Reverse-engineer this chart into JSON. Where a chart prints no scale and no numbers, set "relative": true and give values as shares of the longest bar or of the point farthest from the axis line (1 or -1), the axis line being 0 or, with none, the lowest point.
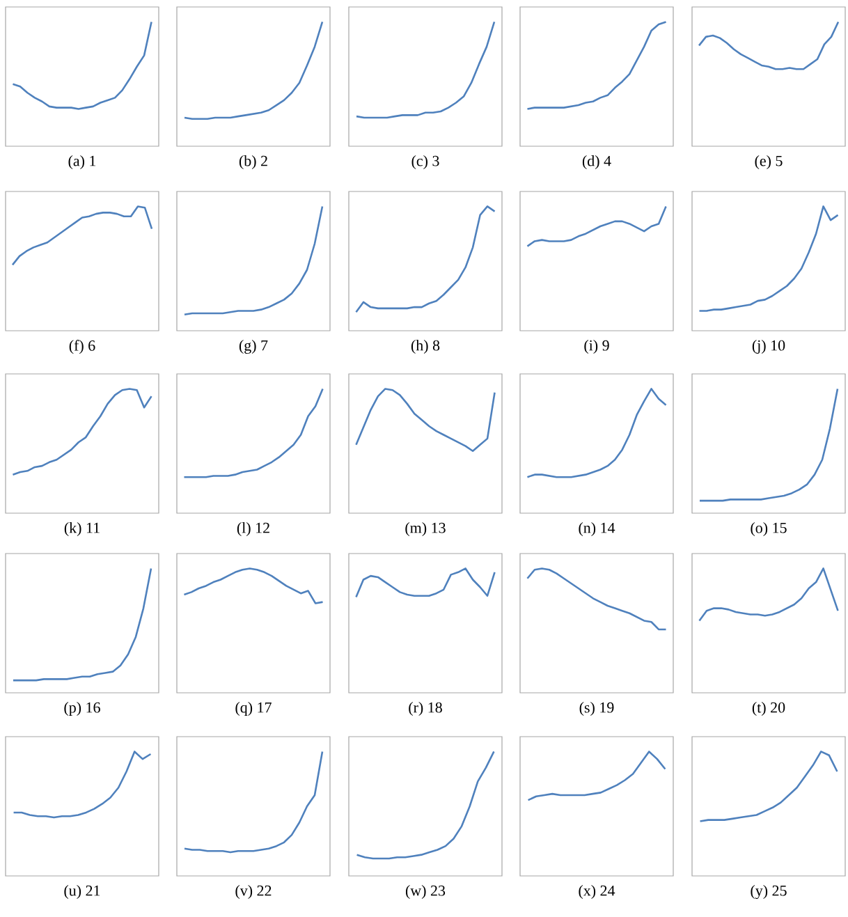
{
  "chart_data": [
    {
      "type": "line",
      "title": "(a) 1",
      "relative": true,
      "color": "#4f81bd",
      "categories": [
        null,
        null,
        null,
        null,
        null,
        null,
        null,
        null,
        null,
        null,
        null,
        null,
        null,
        null,
        null,
        null,
        null,
        null,
        null,
        null
      ],
      "values": [
        0.5,
        0.48,
        0.43,
        0.39,
        0.36,
        0.32,
        0.31,
        0.31,
        0.31,
        0.3,
        0.31,
        0.32,
        0.35,
        0.37,
        0.39,
        0.45,
        0.54,
        0.64,
        0.73,
        1
      ]
    },
    {
      "type": "line",
      "title": "(b) 2",
      "relative": true,
      "color": "#4f81bd",
      "categories": [
        null,
        null,
        null,
        null,
        null,
        null,
        null,
        null,
        null,
        null,
        null,
        null,
        null,
        null,
        null,
        null,
        null,
        null,
        null
      ],
      "values": [
        0.23,
        0.22,
        0.22,
        0.22,
        0.23,
        0.23,
        0.23,
        0.24,
        0.25,
        0.26,
        0.27,
        0.29,
        0.33,
        0.37,
        0.43,
        0.51,
        0.65,
        0.8,
        1
      ]
    },
    {
      "type": "line",
      "title": "(c) 3",
      "relative": true,
      "color": "#4f81bd",
      "categories": [
        null,
        null,
        null,
        null,
        null,
        null,
        null,
        null,
        null,
        null,
        null,
        null,
        null,
        null,
        null,
        null,
        null,
        null,
        null
      ],
      "values": [
        0.24,
        0.23,
        0.23,
        0.23,
        0.23,
        0.24,
        0.25,
        0.25,
        0.25,
        0.27,
        0.27,
        0.28,
        0.31,
        0.35,
        0.4,
        0.51,
        0.66,
        0.8,
        1
      ]
    },
    {
      "type": "line",
      "title": "(d) 4",
      "relative": true,
      "color": "#4f81bd",
      "categories": [
        null,
        null,
        null,
        null,
        null,
        null,
        null,
        null,
        null,
        null,
        null,
        null,
        null,
        null,
        null,
        null,
        null,
        null,
        null,
        null
      ],
      "values": [
        0.3,
        0.31,
        0.31,
        0.31,
        0.31,
        0.31,
        0.32,
        0.33,
        0.35,
        0.36,
        0.39,
        0.41,
        0.47,
        0.52,
        0.58,
        0.69,
        0.8,
        0.93,
        0.98,
        1
      ]
    },
    {
      "type": "line",
      "title": "(e) 5",
      "relative": true,
      "color": "#4f81bd",
      "categories": [
        null,
        null,
        null,
        null,
        null,
        null,
        null,
        null,
        null,
        null,
        null,
        null,
        null,
        null,
        null,
        null,
        null,
        null,
        null,
        null,
        null
      ],
      "values": [
        0.81,
        0.88,
        0.89,
        0.87,
        0.83,
        0.78,
        0.74,
        0.71,
        0.68,
        0.65,
        0.64,
        0.62,
        0.62,
        0.63,
        0.62,
        0.62,
        0.66,
        0.7,
        0.82,
        0.88,
        1
      ]
    },
    {
      "type": "line",
      "title": "(f) 6",
      "relative": true,
      "color": "#4f81bd",
      "categories": [
        null,
        null,
        null,
        null,
        null,
        null,
        null,
        null,
        null,
        null,
        null,
        null,
        null,
        null,
        null,
        null,
        null,
        null,
        null,
        null,
        null
      ],
      "values": [
        0.53,
        0.6,
        0.64,
        0.67,
        0.69,
        0.71,
        0.75,
        0.79,
        0.83,
        0.87,
        0.91,
        0.92,
        0.94,
        0.95,
        0.95,
        0.94,
        0.92,
        0.92,
        1,
        0.99,
        0.82
      ]
    },
    {
      "type": "line",
      "title": "(g) 7",
      "relative": true,
      "color": "#4f81bd",
      "categories": [
        null,
        null,
        null,
        null,
        null,
        null,
        null,
        null,
        null,
        null,
        null,
        null,
        null,
        null,
        null,
        null,
        null,
        null,
        null
      ],
      "values": [
        0.13,
        0.14,
        0.14,
        0.14,
        0.14,
        0.14,
        0.15,
        0.16,
        0.16,
        0.16,
        0.17,
        0.19,
        0.22,
        0.25,
        0.3,
        0.38,
        0.49,
        0.7,
        1
      ]
    },
    {
      "type": "line",
      "title": "(h) 8",
      "relative": true,
      "color": "#4f81bd",
      "categories": [
        null,
        null,
        null,
        null,
        null,
        null,
        null,
        null,
        null,
        null,
        null,
        null,
        null,
        null,
        null,
        null,
        null,
        null,
        null,
        null
      ],
      "values": [
        0.15,
        0.23,
        0.19,
        0.18,
        0.18,
        0.18,
        0.18,
        0.18,
        0.19,
        0.19,
        0.22,
        0.24,
        0.29,
        0.35,
        0.41,
        0.51,
        0.67,
        0.93,
        1,
        0.96
      ]
    },
    {
      "type": "line",
      "title": "(i) 9",
      "relative": true,
      "color": "#4f81bd",
      "categories": [
        null,
        null,
        null,
        null,
        null,
        null,
        null,
        null,
        null,
        null,
        null,
        null,
        null,
        null,
        null,
        null,
        null,
        null,
        null,
        null
      ],
      "values": [
        0.68,
        0.72,
        0.73,
        0.72,
        0.72,
        0.72,
        0.73,
        0.76,
        0.78,
        0.81,
        0.84,
        0.86,
        0.88,
        0.88,
        0.86,
        0.83,
        0.8,
        0.84,
        0.86,
        1
      ]
    },
    {
      "type": "line",
      "title": "(j) 10",
      "relative": true,
      "color": "#4f81bd",
      "categories": [
        null,
        null,
        null,
        null,
        null,
        null,
        null,
        null,
        null,
        null,
        null,
        null,
        null,
        null,
        null,
        null,
        null,
        null,
        null,
        null
      ],
      "values": [
        0.16,
        0.16,
        0.17,
        0.17,
        0.18,
        0.19,
        0.2,
        0.21,
        0.24,
        0.25,
        0.28,
        0.32,
        0.36,
        0.42,
        0.5,
        0.63,
        0.78,
        1,
        0.89,
        0.93
      ]
    },
    {
      "type": "line",
      "title": "(k) 11",
      "relative": true,
      "color": "#4f81bd",
      "categories": [
        null,
        null,
        null,
        null,
        null,
        null,
        null,
        null,
        null,
        null,
        null,
        null,
        null,
        null,
        null,
        null,
        null,
        null,
        null,
        null
      ],
      "values": [
        0.31,
        0.33,
        0.34,
        0.37,
        0.38,
        0.41,
        0.43,
        0.47,
        0.51,
        0.57,
        0.61,
        0.7,
        0.78,
        0.88,
        0.95,
        0.99,
        1,
        0.99,
        0.85,
        0.94
      ]
    },
    {
      "type": "line",
      "title": "(l) 12",
      "relative": true,
      "color": "#4f81bd",
      "categories": [
        null,
        null,
        null,
        null,
        null,
        null,
        null,
        null,
        null,
        null,
        null,
        null,
        null,
        null,
        null,
        null,
        null,
        null,
        null,
        null
      ],
      "values": [
        0.29,
        0.29,
        0.29,
        0.29,
        0.3,
        0.3,
        0.3,
        0.31,
        0.33,
        0.34,
        0.35,
        0.38,
        0.41,
        0.45,
        0.5,
        0.55,
        0.63,
        0.78,
        0.86,
        1
      ]
    },
    {
      "type": "line",
      "title": "(m) 13",
      "relative": true,
      "color": "#4f81bd",
      "categories": [
        null,
        null,
        null,
        null,
        null,
        null,
        null,
        null,
        null,
        null,
        null,
        null,
        null,
        null,
        null,
        null,
        null,
        null,
        null,
        null
      ],
      "values": [
        0.55,
        0.69,
        0.83,
        0.94,
        1,
        0.99,
        0.95,
        0.88,
        0.8,
        0.75,
        0.7,
        0.66,
        0.63,
        0.6,
        0.57,
        0.54,
        0.5,
        0.55,
        0.6,
        0.97
      ]
    },
    {
      "type": "line",
      "title": "(n) 14",
      "relative": true,
      "color": "#4f81bd",
      "categories": [
        null,
        null,
        null,
        null,
        null,
        null,
        null,
        null,
        null,
        null,
        null,
        null,
        null,
        null,
        null,
        null,
        null,
        null,
        null,
        null
      ],
      "values": [
        0.29,
        0.31,
        0.31,
        0.3,
        0.29,
        0.29,
        0.29,
        0.3,
        0.31,
        0.33,
        0.35,
        0.38,
        0.43,
        0.51,
        0.63,
        0.79,
        0.9,
        1,
        0.92,
        0.87
      ]
    },
    {
      "type": "line",
      "title": "(o) 15",
      "relative": true,
      "color": "#4f81bd",
      "categories": [
        null,
        null,
        null,
        null,
        null,
        null,
        null,
        null,
        null,
        null,
        null,
        null,
        null,
        null,
        null,
        null,
        null,
        null,
        null
      ],
      "values": [
        0.1,
        0.1,
        0.1,
        0.1,
        0.11,
        0.11,
        0.11,
        0.11,
        0.11,
        0.12,
        0.13,
        0.14,
        0.16,
        0.19,
        0.23,
        0.31,
        0.43,
        0.68,
        1
      ]
    },
    {
      "type": "line",
      "title": "(p) 16",
      "relative": true,
      "color": "#4f81bd",
      "categories": [
        null,
        null,
        null,
        null,
        null,
        null,
        null,
        null,
        null,
        null,
        null,
        null,
        null,
        null,
        null,
        null,
        null,
        null,
        null
      ],
      "values": [
        0.1,
        0.1,
        0.1,
        0.1,
        0.11,
        0.11,
        0.11,
        0.11,
        0.12,
        0.13,
        0.13,
        0.15,
        0.16,
        0.17,
        0.22,
        0.31,
        0.45,
        0.68,
        1
      ]
    },
    {
      "type": "line",
      "title": "(q) 17",
      "relative": true,
      "color": "#4f81bd",
      "categories": [
        null,
        null,
        null,
        null,
        null,
        null,
        null,
        null,
        null,
        null,
        null,
        null,
        null,
        null,
        null,
        null,
        null,
        null,
        null,
        null
      ],
      "values": [
        0.79,
        0.81,
        0.84,
        0.86,
        0.89,
        0.91,
        0.94,
        0.97,
        0.99,
        1,
        0.99,
        0.97,
        0.94,
        0.9,
        0.86,
        0.83,
        0.8,
        0.82,
        0.72,
        0.73
      ]
    },
    {
      "type": "line",
      "title": "(r) 18",
      "relative": true,
      "color": "#4f81bd",
      "categories": [
        null,
        null,
        null,
        null,
        null,
        null,
        null,
        null,
        null,
        null,
        null,
        null,
        null,
        null,
        null,
        null,
        null,
        null,
        null,
        null
      ],
      "values": [
        0.77,
        0.91,
        0.94,
        0.93,
        0.89,
        0.85,
        0.81,
        0.79,
        0.78,
        0.78,
        0.78,
        0.8,
        0.83,
        0.95,
        0.97,
        1,
        0.91,
        0.85,
        0.78,
        0.97
      ]
    },
    {
      "type": "line",
      "title": "(s) 19",
      "relative": true,
      "color": "#4f81bd",
      "categories": [
        null,
        null,
        null,
        null,
        null,
        null,
        null,
        null,
        null,
        null,
        null,
        null,
        null,
        null,
        null,
        null,
        null,
        null,
        null,
        null
      ],
      "values": [
        0.92,
        0.99,
        1,
        0.99,
        0.96,
        0.92,
        0.88,
        0.84,
        0.8,
        0.76,
        0.73,
        0.7,
        0.68,
        0.66,
        0.64,
        0.61,
        0.58,
        0.57,
        0.51,
        0.51
      ]
    },
    {
      "type": "line",
      "title": "(t) 20",
      "relative": true,
      "color": "#4f81bd",
      "categories": [
        null,
        null,
        null,
        null,
        null,
        null,
        null,
        null,
        null,
        null,
        null,
        null,
        null,
        null,
        null,
        null,
        null,
        null,
        null,
        null
      ],
      "values": [
        0.58,
        0.66,
        0.68,
        0.68,
        0.67,
        0.65,
        0.64,
        0.63,
        0.63,
        0.62,
        0.63,
        0.65,
        0.68,
        0.71,
        0.76,
        0.84,
        0.89,
        1,
        0.83,
        0.66
      ]
    },
    {
      "type": "line",
      "title": "(u) 21",
      "relative": true,
      "color": "#4f81bd",
      "categories": [
        null,
        null,
        null,
        null,
        null,
        null,
        null,
        null,
        null,
        null,
        null,
        null,
        null,
        null,
        null,
        null,
        null,
        null
      ],
      "values": [
        0.51,
        0.51,
        0.49,
        0.48,
        0.48,
        0.47,
        0.48,
        0.48,
        0.49,
        0.51,
        0.54,
        0.58,
        0.63,
        0.71,
        0.84,
        1,
        0.94,
        0.98
      ]
    },
    {
      "type": "line",
      "title": "(v) 22",
      "relative": true,
      "color": "#4f81bd",
      "categories": [
        null,
        null,
        null,
        null,
        null,
        null,
        null,
        null,
        null,
        null,
        null,
        null,
        null,
        null,
        null,
        null,
        null,
        null,
        null
      ],
      "values": [
        0.22,
        0.21,
        0.21,
        0.2,
        0.2,
        0.2,
        0.19,
        0.2,
        0.2,
        0.2,
        0.21,
        0.22,
        0.24,
        0.27,
        0.33,
        0.43,
        0.56,
        0.65,
        1
      ]
    },
    {
      "type": "line",
      "title": "(w) 23",
      "relative": true,
      "color": "#4f81bd",
      "categories": [
        null,
        null,
        null,
        null,
        null,
        null,
        null,
        null,
        null,
        null,
        null,
        null,
        null,
        null,
        null,
        null,
        null,
        null
      ],
      "values": [
        0.17,
        0.15,
        0.14,
        0.14,
        0.14,
        0.15,
        0.15,
        0.16,
        0.17,
        0.19,
        0.21,
        0.24,
        0.3,
        0.4,
        0.56,
        0.76,
        0.87,
        1
      ]
    },
    {
      "type": "line",
      "title": "(x) 24",
      "relative": true,
      "color": "#4f81bd",
      "categories": [
        null,
        null,
        null,
        null,
        null,
        null,
        null,
        null,
        null,
        null,
        null,
        null,
        null,
        null,
        null,
        null,
        null,
        null
      ],
      "values": [
        0.61,
        0.64,
        0.65,
        0.66,
        0.65,
        0.65,
        0.65,
        0.65,
        0.66,
        0.67,
        0.7,
        0.73,
        0.77,
        0.82,
        0.91,
        1,
        0.94,
        0.86
      ]
    },
    {
      "type": "line",
      "title": "(y) 25",
      "relative": true,
      "color": "#4f81bd",
      "categories": [
        null,
        null,
        null,
        null,
        null,
        null,
        null,
        null,
        null,
        null,
        null,
        null,
        null,
        null,
        null,
        null,
        null,
        null
      ],
      "values": [
        0.44,
        0.45,
        0.45,
        0.45,
        0.46,
        0.47,
        0.48,
        0.49,
        0.52,
        0.55,
        0.59,
        0.65,
        0.71,
        0.8,
        0.89,
        1,
        0.97,
        0.84
      ]
    }
  ]
}
